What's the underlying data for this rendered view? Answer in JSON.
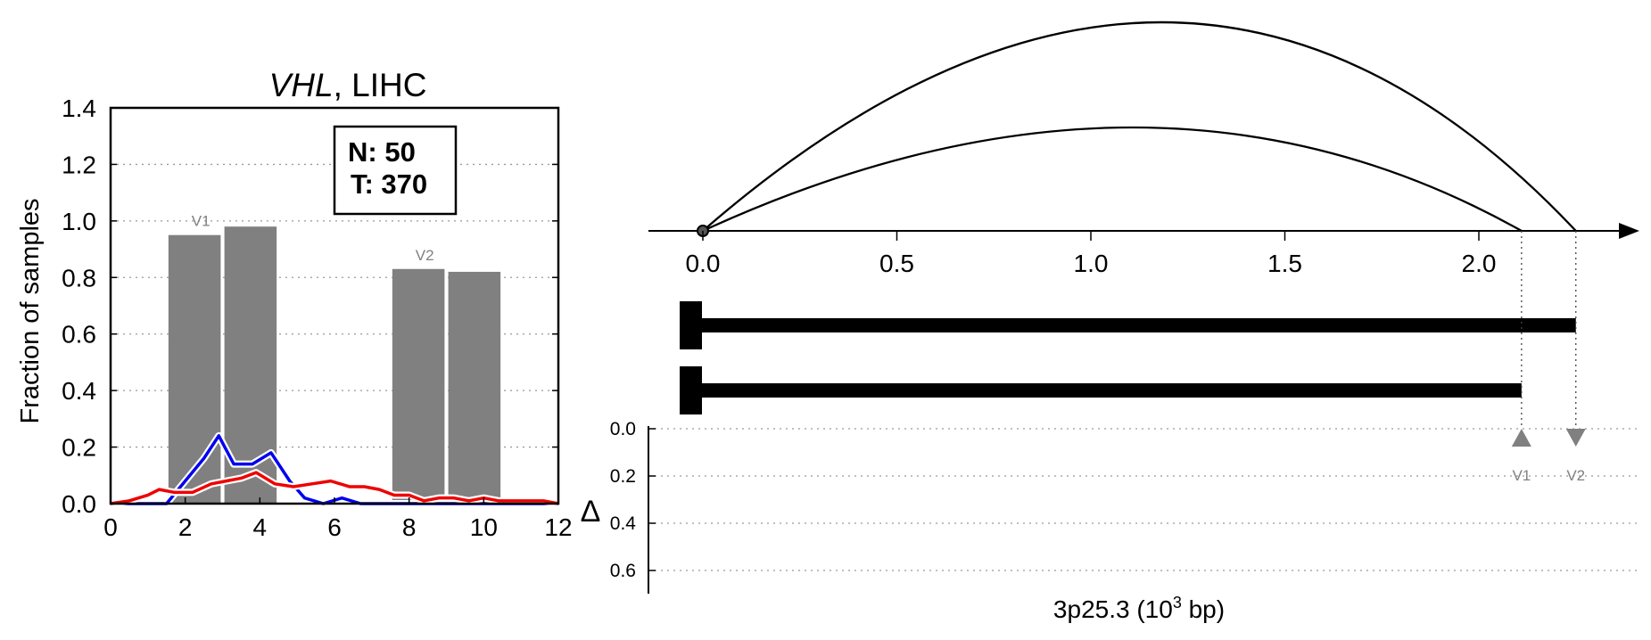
{
  "colors": {
    "bar": "#808080",
    "normal": "#0000ee",
    "tumor": "#ee0000",
    "marker": "#808080",
    "ink": "#000000"
  },
  "chart_data": [
    {
      "type": "bar",
      "title_gene": "VHL",
      "title_rest": ", LIHC",
      "xlabel": "",
      "ylabel": "Fraction of samples",
      "xlim": [
        0,
        12
      ],
      "ylim": [
        0,
        1.4
      ],
      "xticks": [
        "0",
        "2",
        "4",
        "6",
        "8",
        "10",
        "12"
      ],
      "yticks": [
        "0.0",
        "0.2",
        "0.4",
        "0.6",
        "0.8",
        "1.0",
        "1.2",
        "1.4"
      ],
      "grid": "horizontal dotted",
      "legend_box": {
        "line1": "N: 50",
        "line2": "T: 370",
        "position": "top-right"
      },
      "bars": [
        {
          "x_start": 1.55,
          "x_end": 2.95,
          "value": 0.95,
          "label": "V1"
        },
        {
          "x_start": 3.05,
          "x_end": 4.45,
          "value": 0.98,
          "label": ""
        },
        {
          "x_start": 7.55,
          "x_end": 8.95,
          "value": 0.83,
          "label": "V2"
        },
        {
          "x_start": 9.05,
          "x_end": 10.45,
          "value": 0.82,
          "label": ""
        }
      ],
      "series": [
        {
          "color": "blue",
          "x": [
            0,
            0.5,
            1,
            1.5,
            2,
            2.5,
            2.9,
            3.3,
            3.8,
            4.3,
            4.8,
            5.2,
            5.7,
            6.2,
            6.7,
            7.2,
            7.7,
            8.2,
            8.7,
            9.2,
            9.7,
            10.2,
            10.7,
            11.2,
            11.7,
            12
          ],
          "y": [
            0.0,
            0.0,
            0.0,
            0.0,
            0.08,
            0.16,
            0.24,
            0.14,
            0.14,
            0.18,
            0.08,
            0.02,
            0.0,
            0.02,
            0.0,
            0.0,
            0.0,
            0.0,
            0.0,
            0.0,
            0.0,
            0.0,
            0.0,
            0.0,
            0.0,
            0.0
          ]
        },
        {
          "color": "red",
          "x": [
            0,
            0.5,
            1,
            1.3,
            1.7,
            2.2,
            2.7,
            3.1,
            3.5,
            3.9,
            4.4,
            4.9,
            5.4,
            5.9,
            6.4,
            6.8,
            7.2,
            7.6,
            8.0,
            8.4,
            8.8,
            9.2,
            9.6,
            10.0,
            10.4,
            10.8,
            11.2,
            11.6,
            12
          ],
          "y": [
            0.0,
            0.01,
            0.03,
            0.05,
            0.04,
            0.04,
            0.07,
            0.08,
            0.09,
            0.11,
            0.07,
            0.06,
            0.07,
            0.08,
            0.06,
            0.06,
            0.05,
            0.03,
            0.03,
            0.01,
            0.02,
            0.02,
            0.01,
            0.02,
            0.01,
            0.01,
            0.01,
            0.01,
            0.0
          ]
        }
      ]
    },
    {
      "type": "diagram",
      "xlabel_main": "3p25.3 (10",
      "xlabel_sup": "3",
      "xlabel_unit": " bp)",
      "xlim": [
        0,
        2.3
      ],
      "xticks": [
        "0.0",
        "0.5",
        "1.0",
        "1.5",
        "2.0"
      ],
      "arcs": [
        {
          "start": 0,
          "end": 2.25,
          "height": "tall"
        },
        {
          "start": 0,
          "end": 2.11,
          "height": "short"
        }
      ],
      "isoforms": [
        {
          "start": 0,
          "end": 2.25
        },
        {
          "start": 0,
          "end": 2.11
        }
      ],
      "delta_symbol": "Δ",
      "delta_yticks": [
        "0.0",
        "0.2",
        "0.4",
        "0.6"
      ],
      "delta_ylim": [
        0,
        0.6
      ],
      "markers": [
        {
          "label": "V1",
          "position": 2.11,
          "delta": 0.0,
          "shape": "triangle-up"
        },
        {
          "label": "V2",
          "position": 2.25,
          "delta": 0.0,
          "shape": "triangle-down"
        }
      ]
    }
  ]
}
